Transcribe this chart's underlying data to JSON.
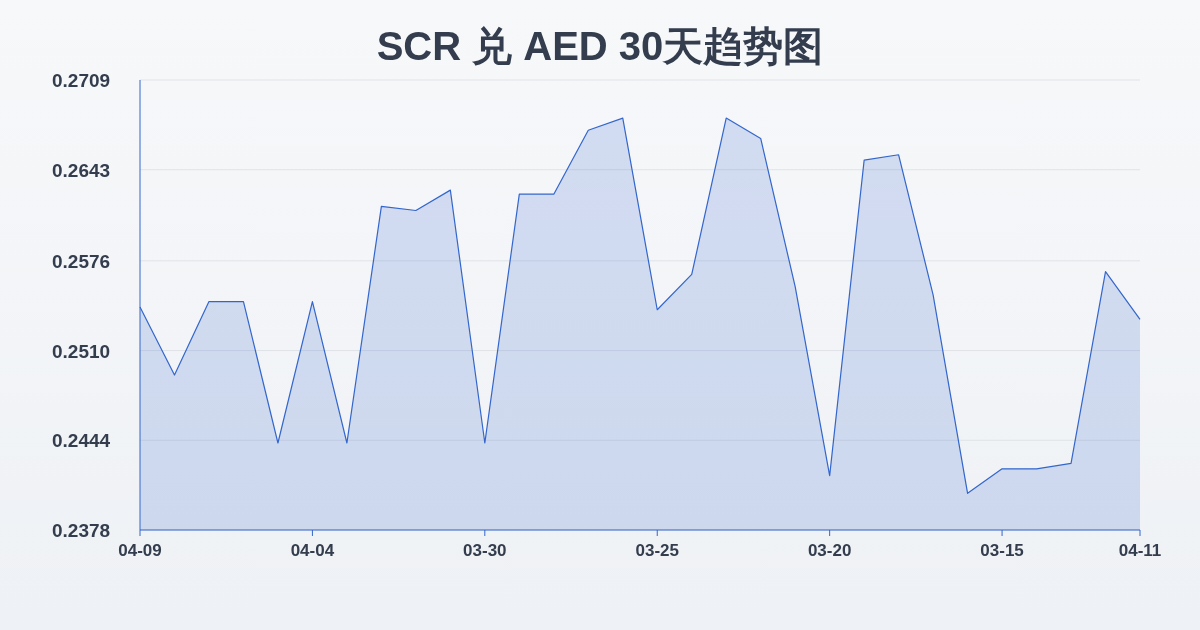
{
  "chart_data": {
    "type": "area",
    "title": "SCR 兑 AED 30天趋势图",
    "categories": [
      "04-09",
      null,
      null,
      null,
      null,
      "04-04",
      null,
      null,
      null,
      null,
      "03-30",
      null,
      null,
      null,
      null,
      "03-25",
      null,
      null,
      null,
      null,
      "03-20",
      null,
      null,
      null,
      null,
      "03-15",
      null,
      null,
      null,
      "04-11"
    ],
    "series": [
      {
        "color": "#3366cc",
        "values": [
          0.2542,
          0.2492,
          0.2546,
          0.2546,
          0.2442,
          0.2546,
          0.2442,
          0.2616,
          0.2613,
          0.2628,
          0.2442,
          0.2625,
          0.2625,
          0.2672,
          0.2681,
          0.254,
          0.2566,
          0.2681,
          0.2666,
          0.2557,
          0.2418,
          0.265,
          0.2654,
          0.2551,
          0.2405,
          0.2423,
          0.2423,
          0.2427,
          0.2568,
          0.2533
        ]
      }
    ],
    "ylim": [
      0.2378,
      0.2709
    ],
    "yticks": [
      0.2378,
      0.2444,
      {
        "value": 0.251,
        "label": "0.2510"
      },
      0.2576,
      0.2643,
      0.2709
    ],
    "grid": "y"
  }
}
